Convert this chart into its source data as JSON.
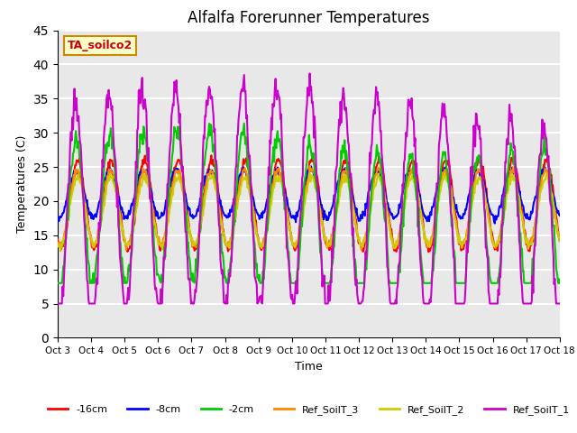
{
  "title": "Alfalfa Forerunner Temperatures",
  "xlabel": "Time",
  "ylabel": "Temperatures (C)",
  "ylim": [
    0,
    45
  ],
  "yticks": [
    0,
    5,
    10,
    15,
    20,
    25,
    30,
    35,
    40,
    45
  ],
  "x_labels": [
    "Oct 3",
    "Oct 4",
    "Oct 5",
    "Oct 6",
    "Oct 7",
    "Oct 8",
    "Oct 9",
    "Oct 10",
    "Oct 11",
    "Oct 12",
    "Oct 13",
    "Oct 14",
    "Oct 15",
    "Oct 16",
    "Oct 17",
    "Oct 18"
  ],
  "annotation_text": "TA_soilco2",
  "annotation_box_color": "#FFFFCC",
  "annotation_text_color": "#CC0000",
  "annotation_edge_color": "#CC8800",
  "line_colors": {
    "-16cm": "#FF0000",
    "-8cm": "#0000FF",
    "-2cm": "#00CC00",
    "Ref_SoilT_3": "#FF8800",
    "Ref_SoilT_2": "#CCCC00",
    "Ref_SoilT_1": "#CC00CC"
  },
  "background_color": "#E8E8E8",
  "grid_color": "#FFFFFF"
}
